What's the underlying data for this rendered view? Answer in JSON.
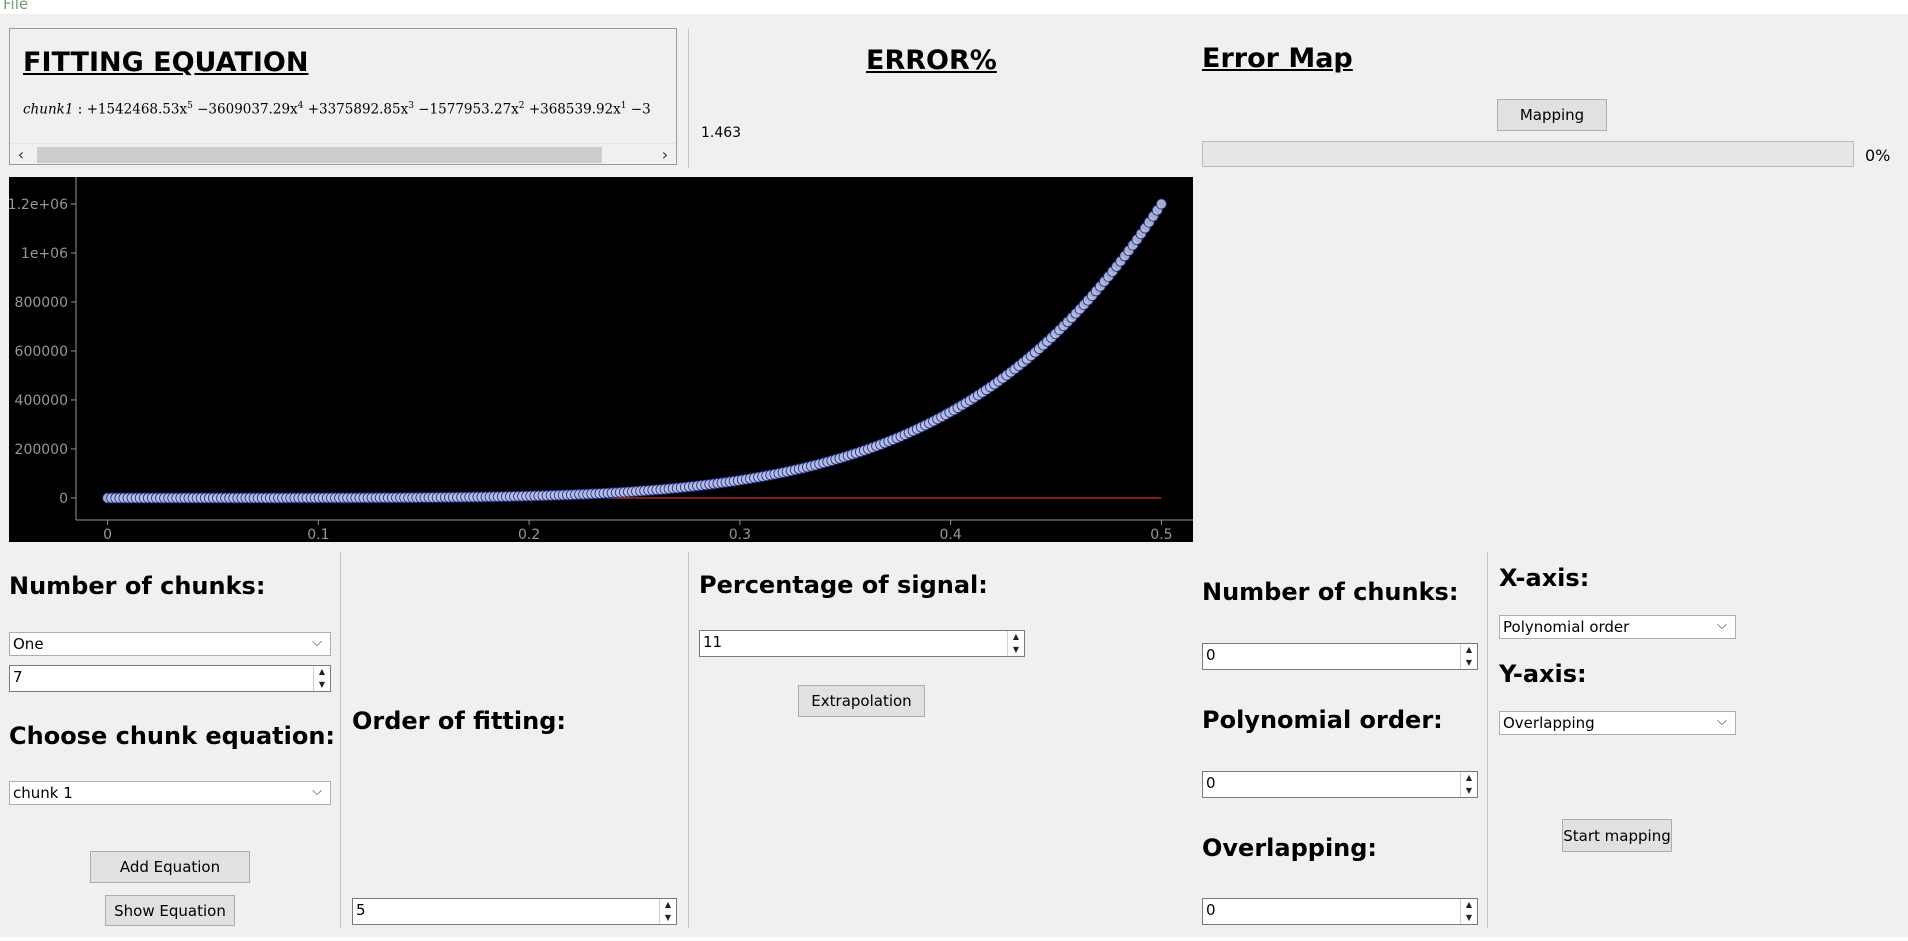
{
  "menu": {
    "file": "File"
  },
  "equation_panel": {
    "title": "FITTING EQUATION",
    "chunk_label": "chunk1",
    "terms": [
      {
        "coef": "+1542468.53x",
        "exp": "5"
      },
      {
        "coef": "−3609037.29x",
        "exp": "4"
      },
      {
        "coef": "+3375892.85x",
        "exp": "3"
      },
      {
        "coef": "−1577953.27x",
        "exp": "2"
      },
      {
        "coef": "+368539.92x",
        "exp": "1"
      },
      {
        "coef": "−3",
        "exp": ""
      }
    ]
  },
  "error_panel": {
    "title": "ERROR%",
    "value": "1.463"
  },
  "error_map": {
    "title": "Error Map",
    "mapping_button": "Mapping",
    "progress_percent": 0,
    "progress_label": "0%"
  },
  "chart_data": {
    "type": "scatter",
    "x_ticks": [
      "0",
      "0.1",
      "0.2",
      "0.3",
      "0.4",
      "0.5"
    ],
    "y_ticks": [
      "0",
      "200000",
      "400000",
      "600000",
      "800000",
      "1e+06",
      "1.2e+06"
    ],
    "xlim": [
      -0.015,
      0.515
    ],
    "ylim": [
      -90000,
      1310000
    ],
    "point_count": 101,
    "x_range": [
      0,
      0.5
    ],
    "fit_polynomial": [
      1542468.53,
      -3609037.29,
      3375892.85,
      -1577953.27,
      368539.92,
      -3
    ],
    "series": [
      {
        "kind": "scatter",
        "x": [
          0,
          0.1,
          0.2,
          0.25,
          0.3,
          0.35,
          0.4,
          0.45,
          0.5
        ],
        "y": [
          0,
          0,
          10000,
          25000,
          75000,
          160000,
          330000,
          640000,
          1200000
        ]
      },
      {
        "kind": "line",
        "x": [
          0.2,
          0.5
        ],
        "y": [
          0,
          0
        ]
      }
    ],
    "colors": {
      "background": "#000000",
      "marker_fill": "#b7bedf",
      "marker_edge": "#1a2a88",
      "line": "#ff3b3b",
      "axis": "#969696"
    },
    "grid": false
  },
  "controls": {
    "chunks_label": "Number of chunks:",
    "chunks_combo": "One",
    "chunks_spin": "7",
    "choose_label": "Choose chunk equation:",
    "choose_combo": "chunk 1",
    "add_button": "Add Equation",
    "show_button": "Show Equation",
    "order_label": "Order of fitting:",
    "order_value": "5",
    "percentage_label": "Percentage of signal:",
    "percentage_value": "11",
    "extrapolation_button": "Extrapolation"
  },
  "mapping": {
    "chunks_label": "Number of chunks:",
    "chunks_value": "0",
    "poly_label": "Polynomial order:",
    "poly_value": "0",
    "overlap_label": "Overlapping:",
    "overlap_value": "0",
    "x_axis_label": "X-axis:",
    "x_axis_value": "Polynomial order",
    "y_axis_label": "Y-axis:",
    "y_axis_value": "Overlapping",
    "start_button": "Start mapping"
  }
}
